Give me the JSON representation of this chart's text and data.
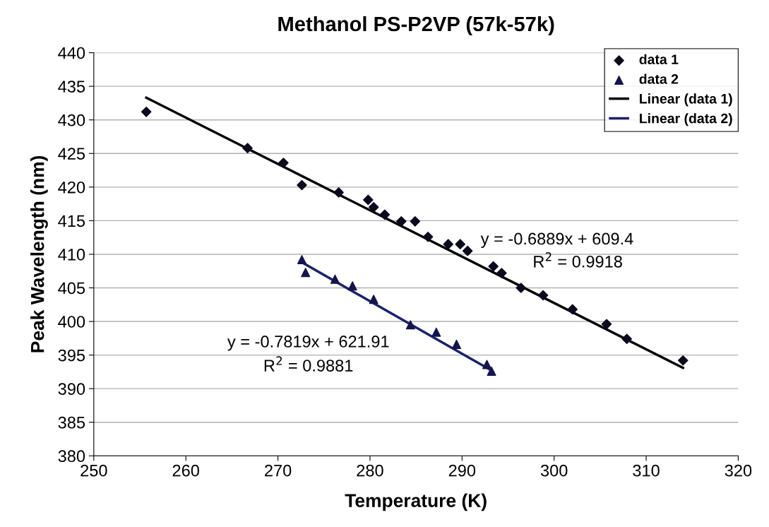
{
  "chart_data": {
    "type": "scatter",
    "title": "Methanol PS-P2VP (57k-57k)",
    "xlabel": "Temperature (K)",
    "ylabel": "Peak Wavelength (nm)",
    "xlim": [
      250,
      320
    ],
    "xticks": [
      250,
      260,
      270,
      280,
      290,
      300,
      310,
      320
    ],
    "ylim": [
      380,
      440
    ],
    "yticks": [
      380,
      385,
      390,
      395,
      400,
      405,
      410,
      415,
      420,
      425,
      430,
      435,
      440
    ],
    "grid": "y",
    "legend": "top right",
    "series": [
      {
        "name": "data 1",
        "marker": "diamond",
        "color": "#0a0a1e",
        "x": [
          255.7,
          266.7,
          270.6,
          272.6,
          276.6,
          279.8,
          280.4,
          281.6,
          283.4,
          284.9,
          286.3,
          288.5,
          289.8,
          290.6,
          293.4,
          294.3,
          296.4,
          298.8,
          302.0,
          305.7,
          307.9,
          314.0
        ],
        "values": [
          431.2,
          425.8,
          423.6,
          420.3,
          419.2,
          418.1,
          417.0,
          415.9,
          414.9,
          414.9,
          412.6,
          411.5,
          411.5,
          410.5,
          408.2,
          407.2,
          405.0,
          403.9,
          401.8,
          399.6,
          397.4,
          394.2
        ]
      },
      {
        "name": "data 2",
        "marker": "triangle",
        "color": "#141450",
        "x": [
          272.6,
          273.0,
          276.2,
          278.1,
          280.4,
          284.4,
          287.2,
          289.4,
          292.7,
          293.2
        ],
        "values": [
          409.2,
          407.3,
          406.3,
          405.3,
          403.3,
          399.5,
          398.4,
          396.6,
          393.6,
          392.6
        ]
      },
      {
        "name": "Linear (data 1)",
        "type": "line",
        "marker": "none",
        "color": "#000000",
        "x": [
          255.7,
          314.0
        ],
        "values": [
          433.3,
          393.1
        ]
      },
      {
        "name": "Linear (data 2)",
        "type": "line",
        "marker": "none",
        "color": "#1a2070",
        "x": [
          272.6,
          293.2
        ],
        "values": [
          408.8,
          392.7
        ]
      }
    ],
    "annotations": [
      "y = -0.6889x + 609.4",
      "R$^{2}$ = 0.9918",
      "y = -0.7819x + 621.91",
      "R$^{2}$ = 0.9881"
    ]
  }
}
